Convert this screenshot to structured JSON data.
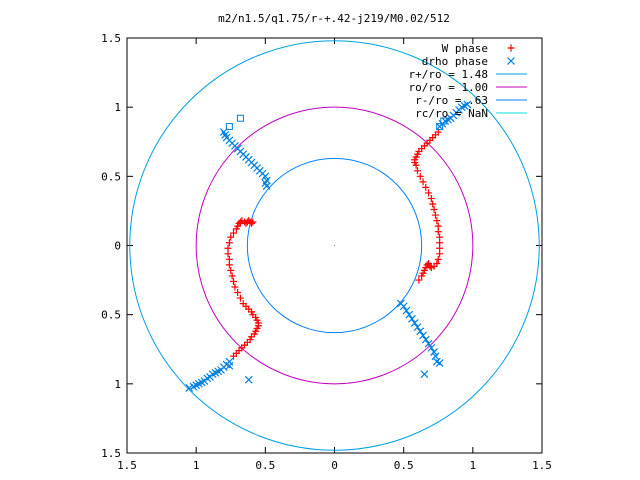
{
  "chart_data": {
    "type": "scatter",
    "title": "m2/n1.5/q1.75/r-+.42-j219/M0.02/512",
    "xlabel": "",
    "ylabel": "",
    "xlim": [
      -1.5,
      1.5
    ],
    "ylim": [
      -1.5,
      1.5
    ],
    "x_ticks": [
      -1.5,
      -1,
      -0.5,
      0,
      0.5,
      1,
      1.5
    ],
    "y_ticks": [
      -1.5,
      -1,
      -0.5,
      0,
      0.5,
      1,
      1.5
    ],
    "x_tick_labels": [
      "1.5",
      "1",
      "0.5",
      "0",
      "0.5",
      "1",
      "1.5"
    ],
    "y_tick_labels": [
      "1.5",
      "1",
      "0.5",
      "0",
      "0.5",
      "1",
      "1.5"
    ],
    "grid": false,
    "legend_position": "top-right",
    "colors": {
      "w_phase": "#ff0000",
      "drho_phase": "#0080e0",
      "r_plus": "#00a0e0",
      "r_o": "#c000c0",
      "r_minus": "#0080ff",
      "r_c": "#00e0e0"
    },
    "series": [
      {
        "name": "W phase",
        "marker": "plus",
        "points": [
          [
            -0.73,
            -0.8
          ],
          [
            -0.71,
            -0.78
          ],
          [
            -0.69,
            -0.76
          ],
          [
            -0.67,
            -0.74
          ],
          [
            -0.65,
            -0.72
          ],
          [
            -0.63,
            -0.7
          ],
          [
            -0.61,
            -0.68
          ],
          [
            -0.6,
            -0.66
          ],
          [
            -0.58,
            -0.64
          ],
          [
            -0.57,
            -0.62
          ],
          [
            -0.56,
            -0.6
          ],
          [
            -0.55,
            -0.58
          ],
          [
            -0.55,
            -0.56
          ],
          [
            -0.56,
            -0.54
          ],
          [
            -0.57,
            -0.52
          ],
          [
            -0.59,
            -0.5
          ],
          [
            -0.6,
            -0.48
          ],
          [
            -0.62,
            -0.46
          ],
          [
            -0.64,
            -0.44
          ],
          [
            -0.66,
            -0.42
          ],
          [
            -0.68,
            -0.38
          ],
          [
            -0.7,
            -0.34
          ],
          [
            -0.72,
            -0.3
          ],
          [
            -0.73,
            -0.26
          ],
          [
            -0.74,
            -0.22
          ],
          [
            -0.75,
            -0.18
          ],
          [
            -0.76,
            -0.14
          ],
          [
            -0.76,
            -0.1
          ],
          [
            -0.77,
            -0.06
          ],
          [
            -0.77,
            -0.02
          ],
          [
            -0.76,
            0.02
          ],
          [
            -0.75,
            0.06
          ],
          [
            -0.73,
            0.09
          ],
          [
            -0.71,
            0.12
          ],
          [
            -0.7,
            0.14
          ],
          [
            -0.69,
            0.16
          ],
          [
            -0.68,
            0.17
          ],
          [
            -0.67,
            0.18
          ],
          [
            -0.65,
            0.17
          ],
          [
            -0.64,
            0.16
          ],
          [
            -0.63,
            0.17
          ],
          [
            -0.62,
            0.18
          ],
          [
            -0.61,
            0.17
          ],
          [
            -0.6,
            0.16
          ],
          [
            -0.59,
            0.17
          ],
          [
            0.59,
            0.58
          ],
          [
            0.58,
            0.6
          ],
          [
            0.58,
            0.62
          ],
          [
            0.59,
            0.64
          ],
          [
            0.6,
            0.66
          ],
          [
            0.61,
            0.68
          ],
          [
            0.63,
            0.7
          ],
          [
            0.65,
            0.72
          ],
          [
            0.67,
            0.74
          ],
          [
            0.69,
            0.76
          ],
          [
            0.71,
            0.78
          ],
          [
            0.73,
            0.8
          ],
          [
            0.75,
            0.82
          ],
          [
            0.6,
            0.54
          ],
          [
            0.62,
            0.5
          ],
          [
            0.64,
            0.46
          ],
          [
            0.66,
            0.42
          ],
          [
            0.68,
            0.38
          ],
          [
            0.7,
            0.34
          ],
          [
            0.71,
            0.3
          ],
          [
            0.72,
            0.26
          ],
          [
            0.73,
            0.22
          ],
          [
            0.74,
            0.18
          ],
          [
            0.75,
            0.14
          ],
          [
            0.75,
            0.1
          ],
          [
            0.76,
            0.06
          ],
          [
            0.76,
            0.02
          ],
          [
            0.76,
            -0.02
          ],
          [
            0.76,
            -0.06
          ],
          [
            0.75,
            -0.1
          ],
          [
            0.74,
            -0.13
          ],
          [
            0.72,
            -0.15
          ],
          [
            0.7,
            -0.16
          ],
          [
            0.69,
            -0.15
          ],
          [
            0.68,
            -0.13
          ],
          [
            0.67,
            -0.14
          ],
          [
            0.66,
            -0.16
          ],
          [
            0.65,
            -0.18
          ],
          [
            0.64,
            -0.2
          ],
          [
            0.63,
            -0.22
          ],
          [
            0.61,
            -0.25
          ]
        ]
      },
      {
        "name": "drho phase",
        "marker": "cross",
        "points": [
          [
            -0.8,
            0.82
          ],
          [
            -0.79,
            0.8
          ],
          [
            -0.78,
            0.78
          ],
          [
            -0.76,
            0.76
          ],
          [
            -0.74,
            0.74
          ],
          [
            -0.72,
            0.72
          ],
          [
            -0.7,
            0.7
          ],
          [
            -0.68,
            0.68
          ],
          [
            -0.66,
            0.66
          ],
          [
            -0.64,
            0.64
          ],
          [
            -0.62,
            0.62
          ],
          [
            -0.6,
            0.6
          ],
          [
            -0.58,
            0.58
          ],
          [
            -0.56,
            0.56
          ],
          [
            -0.54,
            0.54
          ],
          [
            -0.52,
            0.52
          ],
          [
            -0.5,
            0.5
          ],
          [
            -0.49,
            0.47
          ],
          [
            -0.5,
            0.45
          ],
          [
            -0.49,
            0.43
          ],
          [
            0.76,
            0.86
          ],
          [
            0.78,
            0.88
          ],
          [
            0.8,
            0.9
          ],
          [
            0.82,
            0.91
          ],
          [
            0.84,
            0.92
          ],
          [
            0.86,
            0.94
          ],
          [
            0.88,
            0.96
          ],
          [
            0.9,
            0.98
          ],
          [
            0.92,
            1.0
          ],
          [
            0.94,
            1.01
          ],
          [
            0.96,
            1.02
          ],
          [
            0.48,
            -0.42
          ],
          [
            0.5,
            -0.44
          ],
          [
            0.52,
            -0.47
          ],
          [
            0.54,
            -0.5
          ],
          [
            0.56,
            -0.53
          ],
          [
            0.58,
            -0.56
          ],
          [
            0.6,
            -0.59
          ],
          [
            0.62,
            -0.62
          ],
          [
            0.64,
            -0.65
          ],
          [
            0.66,
            -0.68
          ],
          [
            0.68,
            -0.71
          ],
          [
            0.7,
            -0.74
          ],
          [
            0.72,
            -0.77
          ],
          [
            0.73,
            -0.8
          ],
          [
            0.74,
            -0.84
          ],
          [
            -0.76,
            -0.84
          ],
          [
            -0.78,
            -0.86
          ],
          [
            -0.8,
            -0.88
          ],
          [
            -0.82,
            -0.9
          ],
          [
            -0.84,
            -0.91
          ],
          [
            -0.86,
            -0.92
          ],
          [
            -0.88,
            -0.93
          ],
          [
            -0.9,
            -0.95
          ],
          [
            -0.92,
            -0.96
          ],
          [
            -0.94,
            -0.98
          ],
          [
            -0.96,
            -0.99
          ],
          [
            -0.98,
            -1.0
          ],
          [
            -1.0,
            -1.01
          ],
          [
            -1.02,
            -1.02
          ],
          [
            -1.05,
            -1.03
          ],
          [
            -0.62,
            -0.97
          ],
          [
            0.65,
            -0.93
          ],
          [
            -0.76,
            -0.87
          ],
          [
            0.76,
            -0.85
          ]
        ]
      },
      {
        "name": "extra squares",
        "marker": "square",
        "points": [
          [
            -0.76,
            0.86
          ],
          [
            -0.68,
            0.92
          ],
          [
            0.76,
            0.86
          ],
          [
            0.79,
            0.9
          ]
        ]
      }
    ],
    "circles": [
      {
        "name": "r+/ro = 1.48",
        "label": "r+/ro = 1.48",
        "radius": 1.48
      },
      {
        "name": "ro/ro = 1.00",
        "label": "ro/ro = 1.00",
        "radius": 1.0
      },
      {
        "name": "r-/ro = .63",
        "label": "r-/ro = .63",
        "radius": 0.63
      },
      {
        "name": "rc/ro = NaN",
        "label": "rc/ro = NaN",
        "radius": null
      }
    ],
    "legend": [
      {
        "label": "W phase",
        "kind": "plus"
      },
      {
        "label": "drho phase",
        "kind": "cross"
      },
      {
        "label": "r+/ro = 1.48",
        "kind": "line"
      },
      {
        "label": "ro/ro = 1.00",
        "kind": "line"
      },
      {
        "label": "r-/ro = .63",
        "kind": "line"
      },
      {
        "label": "rc/ro = NaN",
        "kind": "line"
      }
    ]
  }
}
